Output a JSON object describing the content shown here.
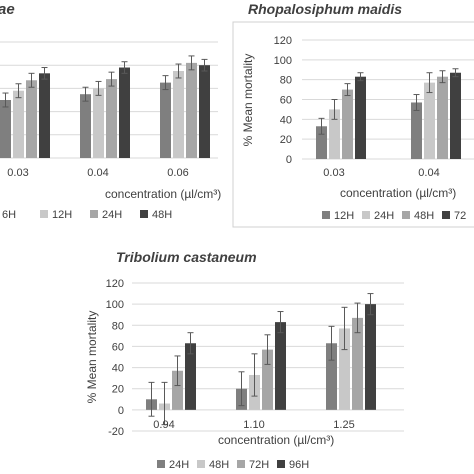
{
  "chart_data": [
    {
      "type": "bar",
      "title": "ae",
      "xlabel": "concentration (µl/cm³)",
      "ylabel": "",
      "categories": [
        "0.03",
        "0.04",
        "0.06"
      ],
      "ylim": [
        0,
        100
      ],
      "series": [
        {
          "name": "6H",
          "color": "#7f7f7f",
          "values": [
            50,
            55,
            65
          ],
          "errors": [
            6,
            6,
            6
          ]
        },
        {
          "name": "12H",
          "color": "#c8c8c8",
          "values": [
            58,
            60,
            75
          ],
          "errors": [
            6,
            6,
            6
          ]
        },
        {
          "name": "24H",
          "color": "#a6a6a6",
          "values": [
            67,
            68,
            82
          ],
          "errors": [
            6,
            6,
            6
          ]
        },
        {
          "name": "48H",
          "color": "#404040",
          "values": [
            73,
            78,
            80
          ],
          "errors": [
            5,
            5,
            5
          ]
        }
      ]
    },
    {
      "type": "bar",
      "title": "Rhopalosiphum maidis",
      "xlabel": "concentration (µl/cm³)",
      "ylabel": "% Mean mortality",
      "categories": [
        "0.03",
        "0.04"
      ],
      "ylim": [
        0,
        120
      ],
      "yticks": [
        0,
        20,
        40,
        60,
        80,
        100,
        120
      ],
      "series": [
        {
          "name": "12H",
          "color": "#7f7f7f",
          "values": [
            33,
            57
          ],
          "errors": [
            8,
            8
          ]
        },
        {
          "name": "24H",
          "color": "#c8c8c8",
          "values": [
            50,
            77
          ],
          "errors": [
            10,
            10
          ]
        },
        {
          "name": "48H",
          "color": "#a6a6a6",
          "values": [
            70,
            83
          ],
          "errors": [
            6,
            6
          ]
        },
        {
          "name": "72",
          "color": "#404040",
          "values": [
            83,
            87
          ],
          "errors": [
            4,
            4
          ]
        }
      ]
    },
    {
      "type": "bar",
      "title": "Tribolium castaneum",
      "xlabel": "concentration (µl/cm³)",
      "ylabel": "% Mean mortality",
      "categories": [
        "0.94",
        "1.10",
        "1.25"
      ],
      "ylim": [
        -20,
        120
      ],
      "yticks": [
        -20,
        0,
        20,
        40,
        60,
        80,
        100,
        120
      ],
      "series": [
        {
          "name": "24H",
          "color": "#7f7f7f",
          "values": [
            10,
            20,
            63
          ],
          "errors": [
            16,
            16,
            16
          ]
        },
        {
          "name": "48H",
          "color": "#c8c8c8",
          "values": [
            6,
            33,
            77
          ],
          "errors": [
            20,
            20,
            20
          ]
        },
        {
          "name": "72H",
          "color": "#a6a6a6",
          "values": [
            37,
            57,
            87
          ],
          "errors": [
            14,
            14,
            14
          ]
        },
        {
          "name": "96H",
          "color": "#404040",
          "values": [
            63,
            83,
            100
          ],
          "errors": [
            10,
            10,
            10
          ]
        }
      ]
    }
  ]
}
